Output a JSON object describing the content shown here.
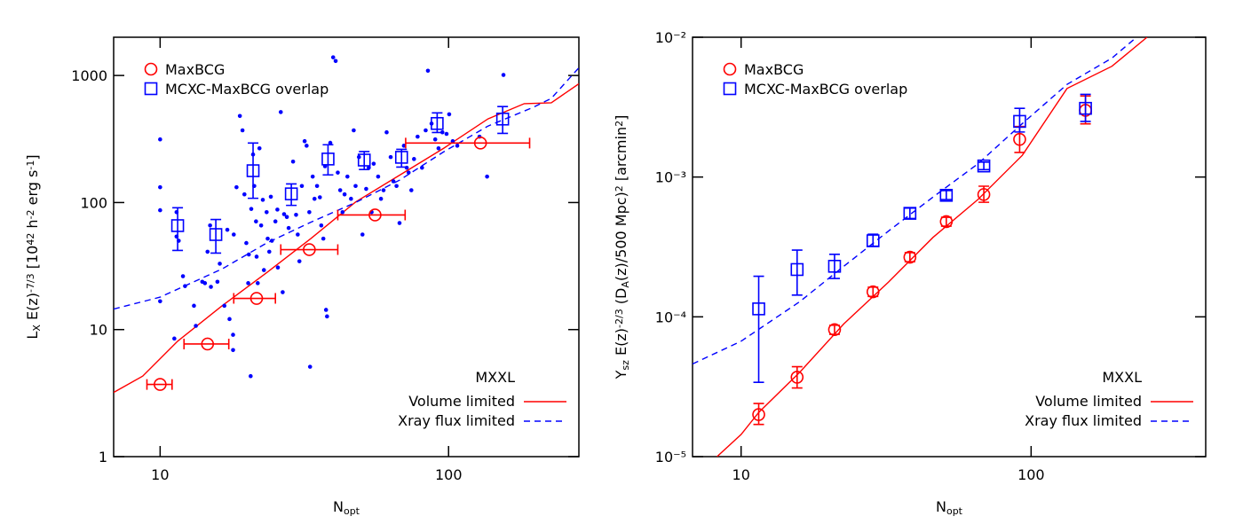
{
  "chart_data": [
    {
      "type": "scatter",
      "xscale": "log",
      "yscale": "log",
      "xlabel": [
        "N",
        {
          "sub": "opt"
        }
      ],
      "ylabel": [
        "L",
        {
          "sub": "X"
        },
        " E(z)",
        {
          "sup": "-7/3"
        },
        " [10",
        {
          "sup": "42"
        },
        " h",
        {
          "sup": "-2"
        },
        " erg s",
        {
          "sup": "-1"
        },
        "]"
      ],
      "xlim": [
        6.9,
        283
      ],
      "ylim": [
        1,
        2000
      ],
      "xticks": [
        10,
        100
      ],
      "yticks": [
        1,
        10,
        100,
        1000
      ],
      "legend": "upper left",
      "lines_legend": "lower right",
      "lines_title": "MXXL",
      "series": [
        {
          "marker": "dot",
          "color": "#0000ff",
          "x": [
            10,
            10,
            10,
            10,
            11.2,
            11.4,
            11.4,
            11.6,
            12.0,
            12.2,
            13.1,
            13.3,
            14.0,
            14.3,
            14.6,
            14.9,
            15.0,
            15.8,
            16.1,
            16.7,
            17.1,
            17.4,
            17.9,
            17.9,
            18.0,
            18.4,
            18.9,
            19.3,
            19.6,
            19.9,
            20.2,
            20.3,
            20.6,
            20.7,
            21.0,
            21.2,
            21.5,
            21.6,
            21.8,
            22.1,
            22.4,
            22.7,
            22.9,
            23.4,
            23.6,
            23.9,
            24.2,
            24.4,
            25.1,
            25.5,
            25.6,
            26.2,
            26.6,
            26.9,
            27.5,
            27.9,
            28.9,
            29.6,
            30.0,
            30.4,
            31.0,
            31.7,
            32.2,
            32.9,
            33.1,
            33.8,
            34.3,
            35.0,
            35.8,
            36.2,
            36.8,
            37.3,
            37.6,
            37.9,
            38.9,
            39.8,
            40.6,
            41.3,
            42.1,
            42.9,
            43.6,
            44.6,
            45.9,
            46.9,
            47.6,
            48.9,
            50.3,
            51.8,
            52.9,
            54.1,
            55.0,
            57.0,
            58.3,
            59.5,
            61.0,
            63.0,
            64.4,
            66.0,
            67.6,
            70.0,
            71.6,
            72.7,
            74.3,
            75.9,
            78.1,
            80.9,
            83.3,
            84.8,
            87.3,
            89.9,
            92.3,
            95.2,
            98.4,
            100.5,
            103.4,
            107.2,
            128,
            136,
            155
          ],
          "values": [
            314,
            132,
            87,
            16.7,
            8.5,
            84,
            54,
            50,
            26.3,
            22,
            15.4,
            10.7,
            23.8,
            23.2,
            41,
            66,
            21.7,
            23.8,
            33,
            15.4,
            61,
            12.1,
            9.1,
            6.9,
            56,
            132,
            480,
            370,
            116,
            48,
            23.2,
            39,
            4.3,
            89,
            239,
            135,
            71,
            37.5,
            23.2,
            267,
            66,
            105,
            29.4,
            84,
            52,
            41,
            111,
            50,
            71,
            88,
            30.8,
            515,
            19.7,
            81,
            77,
            63,
            210,
            80,
            56,
            34.5,
            135,
            304,
            280,
            84,
            5.1,
            160,
            107,
            135,
            110,
            66,
            52,
            193,
            14.3,
            12.7,
            295,
            1390,
            1300,
            172,
            125,
            84,
            116,
            160,
            107,
            370,
            135,
            228,
            56,
            128,
            188,
            84,
            202,
            160,
            107,
            125,
            357,
            228,
            147,
            135,
            69,
            280,
            188,
            172,
            125,
            220,
            330,
            188,
            370,
            1090,
            418,
            314,
            267,
            357,
            347,
            495,
            304,
            280,
            330,
            160,
            1010
          ]
        },
        {
          "name": "MaxBCG",
          "marker": "circle",
          "color": "#ff0000",
          "x": [
            10,
            14.6,
            21.6,
            32.9,
            55.6,
            129
          ],
          "values": [
            3.7,
            7.7,
            17.6,
            42.6,
            79.8,
            294
          ],
          "xlow": [
            9,
            12.1,
            18,
            26.2,
            41.3,
            71
          ],
          "xhigh": [
            11,
            17.3,
            25.1,
            41.3,
            70.7,
            191
          ]
        },
        {
          "name": "MCXC-MaxBCG overlap",
          "marker": "square",
          "color": "#0000ff",
          "x": [
            11.5,
            15.6,
            21,
            28.5,
            38.2,
            51,
            68.7,
            91.3,
            154
          ],
          "values": [
            65.8,
            56,
            178,
            117,
            220,
            216,
            227,
            419,
            454
          ],
          "ylow": [
            42,
            40,
            108,
            95,
            165,
            182,
            190,
            356,
            350
          ],
          "yhigh": [
            91,
            73.5,
            294,
            140,
            285,
            252,
            262,
            508,
            569
          ]
        }
      ],
      "lines": [
        {
          "name": "Volume limited",
          "color": "#ff0000",
          "dash": false,
          "x": [
            6.9,
            8.7,
            11.5,
            16.4,
            23.4,
            33.3,
            47.6,
            67.6,
            96.3,
            137,
            183,
            227,
            283
          ],
          "values": [
            3.2,
            4.3,
            8.1,
            15.4,
            28,
            52,
            101,
            164,
            268,
            455,
            600,
            610,
            860
          ]
        },
        {
          "name": "Xray flux limited",
          "color": "#0000ff",
          "dash": true,
          "x": [
            6.9,
            10,
            16.4,
            23.4,
            33.3,
            47.6,
            67.6,
            96,
            137,
            196,
            227,
            283
          ],
          "values": [
            14.5,
            18,
            30,
            48,
            70,
            100,
            150,
            250,
            400,
            560,
            660,
            1150
          ]
        }
      ]
    },
    {
      "type": "scatter",
      "xscale": "log",
      "yscale": "log",
      "xlabel": [
        "N",
        {
          "sub": "opt"
        }
      ],
      "ylabel": [
        "Y",
        {
          "sub": "sz"
        },
        " E(z)",
        {
          "sup": "-2/3"
        },
        " (D",
        {
          "sub": "A"
        },
        "(z)/500 Mpc)",
        {
          "sup": "2"
        },
        " [arcmin",
        {
          "sup": "2"
        },
        "]"
      ],
      "xlim": [
        6.8,
        400
      ],
      "ylim": [
        1e-05,
        0.01
      ],
      "xticks": [
        10,
        100
      ],
      "yticks": [
        {
          "value": 1e-05,
          "label": "10⁻⁵"
        },
        {
          "value": 0.0001,
          "label": "10⁻⁴"
        },
        {
          "value": 0.001,
          "label": "10⁻³"
        },
        {
          "value": 0.01,
          "label": "10⁻²"
        }
      ],
      "legend": "upper left",
      "lines_legend": "lower right",
      "lines_title": "MXXL",
      "series": [
        {
          "name": "MaxBCG",
          "marker": "circle",
          "color": "#ff0000",
          "x": [
            11.5,
            15.6,
            21,
            28.5,
            38.2,
            51,
            68.7,
            91.3,
            154
          ],
          "values": [
            2e-05,
            3.7e-05,
            8.1e-05,
            0.000151,
            0.000267,
            0.00048,
            0.00075,
            0.00186,
            0.003
          ],
          "ylow": [
            1.7e-05,
            3.1e-05,
            7.5e-05,
            0.00014,
            0.000248,
            0.000445,
            0.00066,
            0.0015,
            0.0024
          ],
          "yhigh": [
            2.4e-05,
            4.4e-05,
            8.7e-05,
            0.000163,
            0.000288,
            0.000515,
            0.00086,
            0.0023,
            0.0038
          ]
        },
        {
          "name": "MCXC-MaxBCG overlap",
          "marker": "square",
          "color": "#0000ff",
          "x": [
            11.5,
            15.6,
            21,
            28.5,
            38.2,
            51,
            68.7,
            91.3,
            154
          ],
          "values": [
            0.000114,
            0.000218,
            0.00023,
            0.00035,
            0.00055,
            0.00074,
            0.0012,
            0.0025,
            0.0031
          ],
          "ylow": [
            3.4e-05,
            0.000143,
            0.000188,
            0.00032,
            0.000505,
            0.00069,
            0.00113,
            0.0021,
            0.0025
          ],
          "yhigh": [
            0.000195,
            0.0003,
            0.00028,
            0.00039,
            0.0006,
            0.0008,
            0.00128,
            0.0031,
            0.0039
          ]
        }
      ],
      "lines": [
        {
          "name": "Volume limited",
          "color": "#ff0000",
          "dash": false,
          "x": [
            8.26,
            10,
            11.5,
            15.9,
            22.6,
            32.2,
            45.9,
            65.5,
            93.2,
            133,
            190,
            251
          ],
          "values": [
            1e-05,
            1.44e-05,
            2.07e-05,
            4e-05,
            8.9e-05,
            0.000177,
            0.00037,
            0.00069,
            0.00143,
            0.0043,
            0.0062,
            0.01
          ]
        },
        {
          "name": "Xray flux limited",
          "color": "#0000ff",
          "dash": true,
          "x": [
            6.8,
            10,
            15.9,
            22.6,
            32.2,
            45.9,
            65.5,
            93,
            133,
            190,
            231
          ],
          "values": [
            4.6e-05,
            6.7e-05,
            0.000128,
            0.00023,
            0.00041,
            0.00072,
            0.00124,
            0.0024,
            0.0046,
            0.0071,
            0.01
          ]
        }
      ]
    }
  ]
}
